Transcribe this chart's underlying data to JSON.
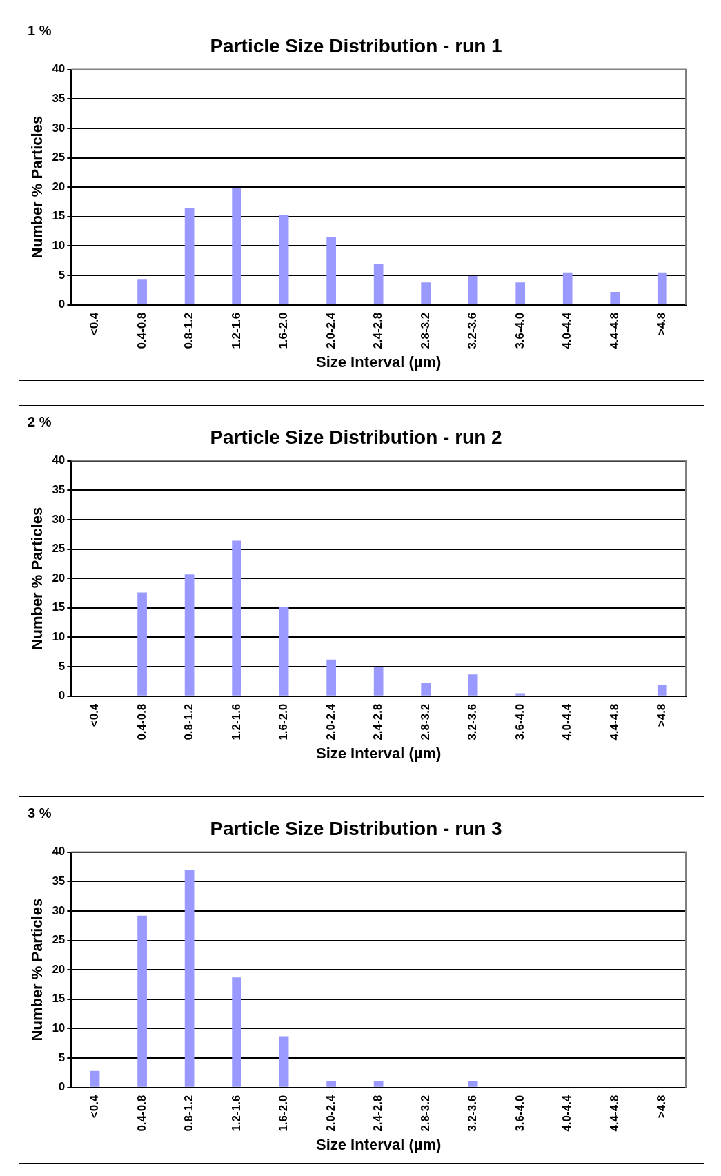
{
  "chart_data": [
    {
      "type": "bar",
      "title": "Particle Size Distribution - run 1",
      "xlabel": "Size Interval (µm)",
      "ylabel": "Number % Particles",
      "annotations": [
        "1 %"
      ],
      "categories": [
        "<0.4",
        "0.4-0.8",
        "0.8-1.2",
        "1.2-1.6",
        "1.6-2.0",
        "2.0-2.4",
        "2.4-2.8",
        "2.8-3.2",
        "3.2-3.6",
        "3.6-4.0",
        "4.0-4.4",
        "4.4-4.8",
        ">4.8"
      ],
      "values": [
        0,
        4.4,
        16.4,
        19.8,
        15.3,
        11.5,
        7.0,
        3.8,
        4.9,
        3.8,
        5.5,
        2.2,
        5.5
      ],
      "color": "#9999ff",
      "ylim": [
        0,
        40
      ],
      "yticks": [
        0,
        5,
        10,
        15,
        20,
        25,
        30,
        35,
        40
      ],
      "grid": "y",
      "legend": false
    },
    {
      "type": "bar",
      "title": "Particle Size Distribution - run 2",
      "xlabel": "Size Interval (µm)",
      "ylabel": "Number % Particles",
      "annotations": [
        "2 %"
      ],
      "categories": [
        "<0.4",
        "0.4-0.8",
        "0.8-1.2",
        "1.2-1.6",
        "1.6-2.0",
        "2.0-2.4",
        "2.4-2.8",
        "2.8-3.2",
        "3.2-3.6",
        "3.6-4.0",
        "4.0-4.4",
        "4.4-4.8",
        ">4.8"
      ],
      "values": [
        0,
        17.6,
        20.7,
        26.4,
        15.1,
        6.2,
        4.9,
        2.3,
        3.7,
        0.5,
        0,
        0,
        1.9
      ],
      "color": "#9999ff",
      "ylim": [
        0,
        40
      ],
      "yticks": [
        0,
        5,
        10,
        15,
        20,
        25,
        30,
        35,
        40
      ],
      "grid": "y",
      "legend": false
    },
    {
      "type": "bar",
      "title": "Particle Size Distribution - run 3",
      "xlabel": "Size Interval (µm)",
      "ylabel": "Number % Particles",
      "annotations": [
        "3 %"
      ],
      "categories": [
        "<0.4",
        "0.4-0.8",
        "0.8-1.2",
        "1.2-1.6",
        "1.6-2.0",
        "2.0-2.4",
        "2.4-2.8",
        "2.8-3.2",
        "3.2-3.6",
        "3.6-4.0",
        "4.0-4.4",
        "4.4-4.8",
        ">4.8"
      ],
      "values": [
        2.8,
        29.2,
        36.9,
        18.7,
        8.7,
        1.1,
        1.1,
        0,
        1.1,
        0,
        0,
        0,
        0
      ],
      "color": "#9999ff",
      "ylim": [
        0,
        40
      ],
      "yticks": [
        0,
        5,
        10,
        15,
        20,
        25,
        30,
        35,
        40
      ],
      "grid": "y",
      "legend": false
    }
  ]
}
